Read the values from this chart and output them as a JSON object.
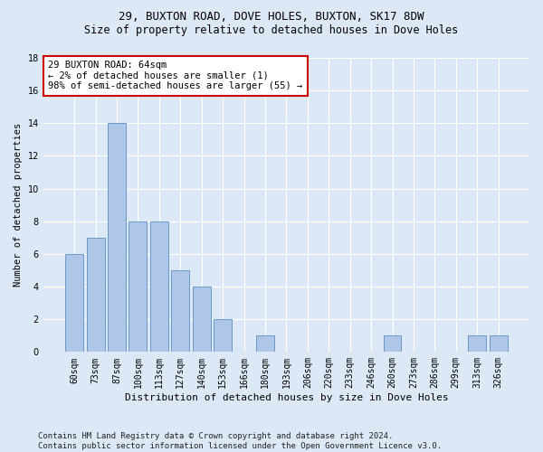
{
  "title1": "29, BUXTON ROAD, DOVE HOLES, BUXTON, SK17 8DW",
  "title2": "Size of property relative to detached houses in Dove Holes",
  "xlabel": "Distribution of detached houses by size in Dove Holes",
  "ylabel": "Number of detached properties",
  "categories": [
    "60sqm",
    "73sqm",
    "87sqm",
    "100sqm",
    "113sqm",
    "127sqm",
    "140sqm",
    "153sqm",
    "166sqm",
    "180sqm",
    "193sqm",
    "206sqm",
    "220sqm",
    "233sqm",
    "246sqm",
    "260sqm",
    "273sqm",
    "286sqm",
    "299sqm",
    "313sqm",
    "326sqm"
  ],
  "values": [
    6,
    7,
    14,
    8,
    8,
    5,
    4,
    2,
    0,
    1,
    0,
    0,
    0,
    0,
    0,
    1,
    0,
    0,
    0,
    1,
    1
  ],
  "bar_color": "#aec6e8",
  "bar_edge_color": "#5a8fc2",
  "annotation_box_text": "29 BUXTON ROAD: 64sqm\n← 2% of detached houses are smaller (1)\n98% of semi-detached houses are larger (55) →",
  "annotation_box_color": "#ffffff",
  "annotation_box_edge_color": "#cc0000",
  "footer_text": "Contains HM Land Registry data © Crown copyright and database right 2024.\nContains public sector information licensed under the Open Government Licence v3.0.",
  "background_color": "#dce8f5",
  "ylim": [
    0,
    18
  ],
  "yticks": [
    0,
    2,
    4,
    6,
    8,
    10,
    12,
    14,
    16,
    18
  ],
  "title1_fontsize": 9,
  "title2_fontsize": 8.5,
  "xlabel_fontsize": 8,
  "ylabel_fontsize": 7.5,
  "tick_fontsize": 7,
  "annotation_fontsize": 7.5,
  "footer_fontsize": 6.5
}
